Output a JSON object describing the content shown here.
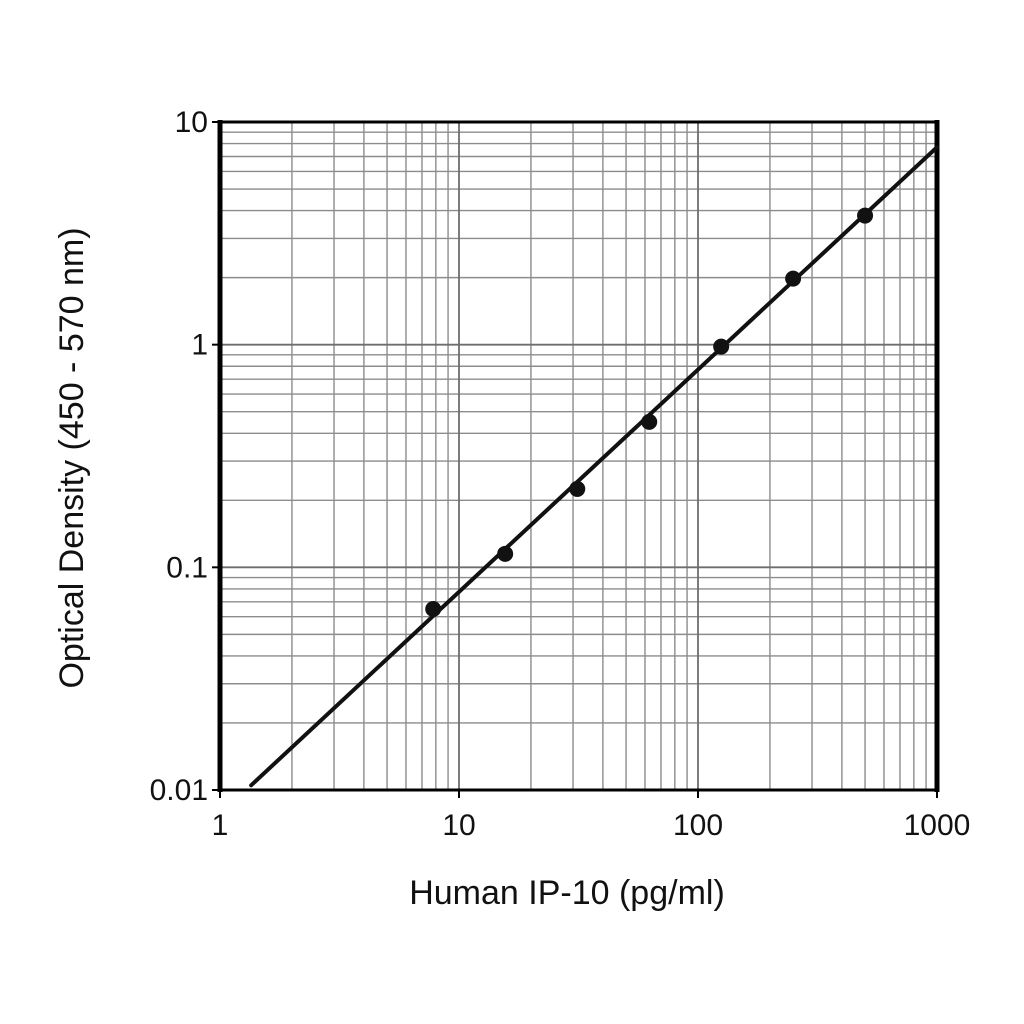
{
  "chart_data": {
    "type": "scatter",
    "title": "",
    "xlabel": "Human IP-10 (pg/ml)",
    "ylabel": "Optical Density (450 - 570 nm)",
    "x_scale": "log",
    "y_scale": "log",
    "xlim": [
      1,
      1000
    ],
    "ylim": [
      0.01,
      10
    ],
    "grid": true,
    "x_ticks": [
      {
        "value": 1,
        "label": "1"
      },
      {
        "value": 10,
        "label": "10"
      },
      {
        "value": 100,
        "label": "100"
      },
      {
        "value": 1000,
        "label": "1000"
      }
    ],
    "y_ticks": [
      {
        "value": 0.01,
        "label": "0.01"
      },
      {
        "value": 0.1,
        "label": "0.1"
      },
      {
        "value": 1,
        "label": "1"
      },
      {
        "value": 10,
        "label": "10"
      }
    ],
    "series": [
      {
        "x": [
          7.8,
          15.6,
          31.25,
          62.5,
          125,
          250,
          500
        ],
        "y": [
          0.065,
          0.115,
          0.225,
          0.45,
          0.98,
          1.98,
          3.8
        ]
      }
    ],
    "fit_line": {
      "x": [
        1.35,
        1000
      ],
      "y": [
        0.0105,
        7.7
      ]
    },
    "colors": {
      "grid": "#8c8c8c",
      "frame": "#000000",
      "marker": "#111111",
      "line": "#111111"
    }
  }
}
